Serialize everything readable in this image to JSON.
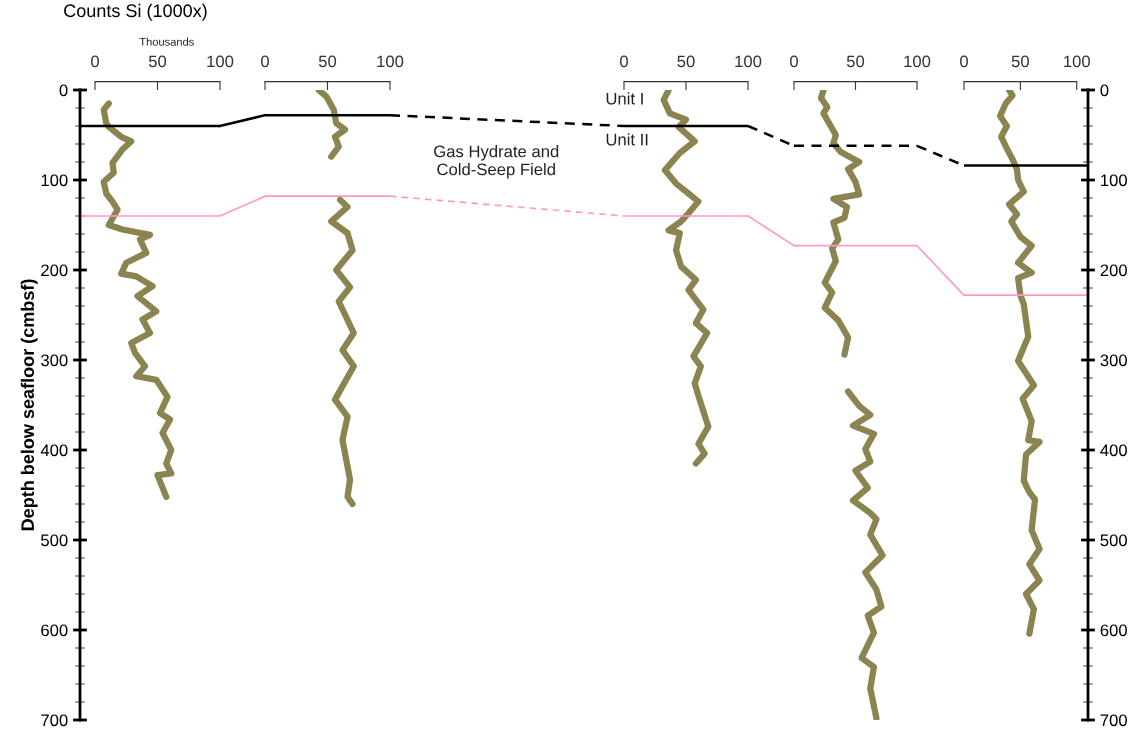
{
  "chart_data": [
    {
      "type": "line",
      "xlabel": "Counts Si (1000x)",
      "ylabel": "Depth below seafloor (cmbsf)",
      "annotations": [
        "Thousands"
      ],
      "xlim": [
        -12,
        100
      ],
      "xticks": [
        0,
        50,
        100
      ],
      "ylim": [
        700,
        0
      ],
      "yticks": [
        0,
        100,
        200,
        300,
        400,
        500,
        600,
        700
      ],
      "grid": false,
      "marker": "none",
      "series": [
        {
          "color": "#8c8450",
          "line_style": "solid",
          "x": [
            11,
            7,
            9,
            11,
            21,
            29,
            22,
            14,
            15,
            7,
            9,
            14,
            18,
            11,
            22,
            44,
            36,
            41,
            25,
            21,
            33,
            46,
            34,
            49,
            38,
            44,
            29,
            32,
            40,
            33,
            49,
            58,
            52,
            60,
            54,
            61,
            57,
            61,
            50,
            57
          ],
          "values": [
            15,
            22,
            37,
            41,
            52,
            57,
            66,
            81,
            92,
            102,
            115,
            124,
            133,
            150,
            155,
            161,
            166,
            181,
            192,
            204,
            207,
            218,
            229,
            246,
            255,
            270,
            281,
            292,
            307,
            318,
            322,
            341,
            359,
            366,
            381,
            400,
            415,
            426,
            428,
            452
          ]
        }
      ],
      "ref_lines": [
        {
          "axis": "y",
          "value": 40,
          "color": "#000000",
          "line_style": "solid"
        },
        {
          "axis": "y",
          "value": 140,
          "color": "#ff99c8",
          "line_style": "solid"
        }
      ]
    },
    {
      "type": "line",
      "xlim": [
        0,
        100
      ],
      "xticks": [
        0,
        50,
        100
      ],
      "ylim": [
        700,
        0
      ],
      "tick_labels": "x",
      "grid": false,
      "marker": "none",
      "series": [
        {
          "color": "#8c8450",
          "line_style": "solid",
          "x": [
            43,
            49,
            55,
            57,
            64,
            56,
            59,
            53
          ],
          "values": [
            0,
            7,
            22,
            37,
            44,
            52,
            63,
            74
          ]
        },
        {
          "color": "#8c8450",
          "line_style": "solid",
          "x": [
            60,
            66,
            53,
            66,
            70,
            57,
            68,
            59,
            71,
            62,
            71,
            56,
            66,
            62,
            68,
            66,
            70
          ],
          "values": [
            122,
            130,
            146,
            159,
            178,
            200,
            219,
            235,
            270,
            289,
            307,
            344,
            363,
            389,
            433,
            452,
            460
          ]
        }
      ],
      "ref_lines": [
        {
          "axis": "y",
          "value": 28,
          "color": "#000000",
          "line_style": "solid"
        },
        {
          "axis": "y",
          "value": 118,
          "color": "#ff99c8",
          "line_style": "solid"
        }
      ],
      "annotations": [
        "Gas Hydrate and\nCold-Seep Field"
      ]
    },
    {
      "type": "line",
      "xlim": [
        0,
        100
      ],
      "xticks": [
        0,
        50,
        100
      ],
      "ylim": [
        700,
        0
      ],
      "tick_labels": "x",
      "grid": false,
      "marker": "none",
      "series": [
        {
          "color": "#8c8450",
          "line_style": "solid",
          "x": [
            36,
            32,
            37,
            50,
            44,
            57,
            45,
            33,
            42,
            52,
            60,
            52,
            46,
            36,
            45,
            42,
            46,
            58,
            52,
            64,
            58,
            67,
            56,
            62,
            57,
            61,
            68,
            60,
            65,
            58
          ],
          "values": [
            0,
            11,
            26,
            33,
            41,
            57,
            70,
            89,
            104,
            115,
            124,
            137,
            146,
            156,
            159,
            178,
            196,
            211,
            222,
            244,
            259,
            270,
            296,
            307,
            326,
            344,
            374,
            393,
            404,
            415
          ]
        }
      ],
      "ref_lines": [
        {
          "axis": "y",
          "value": 40,
          "color": "#000000",
          "line_style": "solid"
        },
        {
          "axis": "y",
          "value": 140,
          "color": "#ff99c8",
          "line_style": "solid"
        }
      ],
      "annotations": [
        "Unit I",
        "Unit II"
      ]
    },
    {
      "type": "line",
      "xlim": [
        0,
        100
      ],
      "xticks": [
        0,
        50,
        100
      ],
      "ylim": [
        700,
        0
      ],
      "tick_labels": "x",
      "grid": false,
      "marker": "none",
      "series": [
        {
          "color": "#8c8450",
          "line_style": "solid",
          "x": [
            24,
            22,
            27,
            24,
            29,
            34,
            32,
            38,
            53,
            44,
            50,
            53,
            32,
            43,
            41,
            32,
            36,
            31,
            34,
            25,
            31,
            25,
            36,
            44,
            41
          ],
          "values": [
            0,
            9,
            19,
            26,
            38,
            50,
            59,
            69,
            80,
            88,
            102,
            116,
            121,
            130,
            142,
            147,
            166,
            176,
            190,
            214,
            225,
            242,
            256,
            275,
            294
          ]
        },
        {
          "color": "#8c8450",
          "line_style": "solid",
          "x": [
            44,
            53,
            62,
            48,
            65,
            58,
            62,
            50,
            60,
            48,
            62,
            67,
            62,
            72,
            58,
            67,
            71,
            60,
            65,
            55,
            65,
            62,
            67
          ],
          "values": [
            335,
            351,
            361,
            373,
            382,
            399,
            413,
            423,
            442,
            456,
            470,
            477,
            494,
            517,
            536,
            555,
            574,
            584,
            603,
            631,
            641,
            665,
            698
          ]
        }
      ],
      "ref_lines": [
        {
          "axis": "y",
          "value": 62,
          "color": "#000000",
          "line_style": "dashed"
        },
        {
          "axis": "y",
          "value": 173,
          "color": "#ff99c8",
          "line_style": "solid"
        }
      ]
    },
    {
      "type": "line",
      "xlim": [
        0,
        110
      ],
      "xticks": [
        0,
        50,
        100
      ],
      "ylim": [
        700,
        0
      ],
      "yticks": [
        0,
        100,
        200,
        300,
        400,
        500,
        600,
        700
      ],
      "grid": false,
      "marker": "none",
      "series": [
        {
          "color": "#8c8450",
          "line_style": "solid",
          "x": [
            40,
            43,
            37,
            32,
            38,
            33,
            38,
            43,
            47,
            48,
            53,
            40,
            47,
            42,
            50,
            60,
            48,
            60,
            48,
            50,
            53,
            57,
            48,
            62,
            52,
            60,
            57,
            67,
            55,
            53,
            58,
            63,
            60,
            67,
            58,
            67,
            55,
            62,
            58
          ],
          "values": [
            0,
            6,
            15,
            29,
            40,
            52,
            65,
            77,
            88,
            100,
            113,
            127,
            138,
            146,
            163,
            173,
            192,
            203,
            209,
            228,
            238,
            274,
            301,
            328,
            343,
            368,
            389,
            391,
            405,
            434,
            447,
            455,
            489,
            510,
            527,
            545,
            560,
            577,
            604
          ]
        }
      ],
      "ref_lines": [
        {
          "axis": "y",
          "value": 84,
          "color": "#000000",
          "line_style": "solid"
        },
        {
          "axis": "y",
          "value": 228,
          "color": "#ff99c8",
          "line_style": "solid"
        }
      ]
    }
  ]
}
